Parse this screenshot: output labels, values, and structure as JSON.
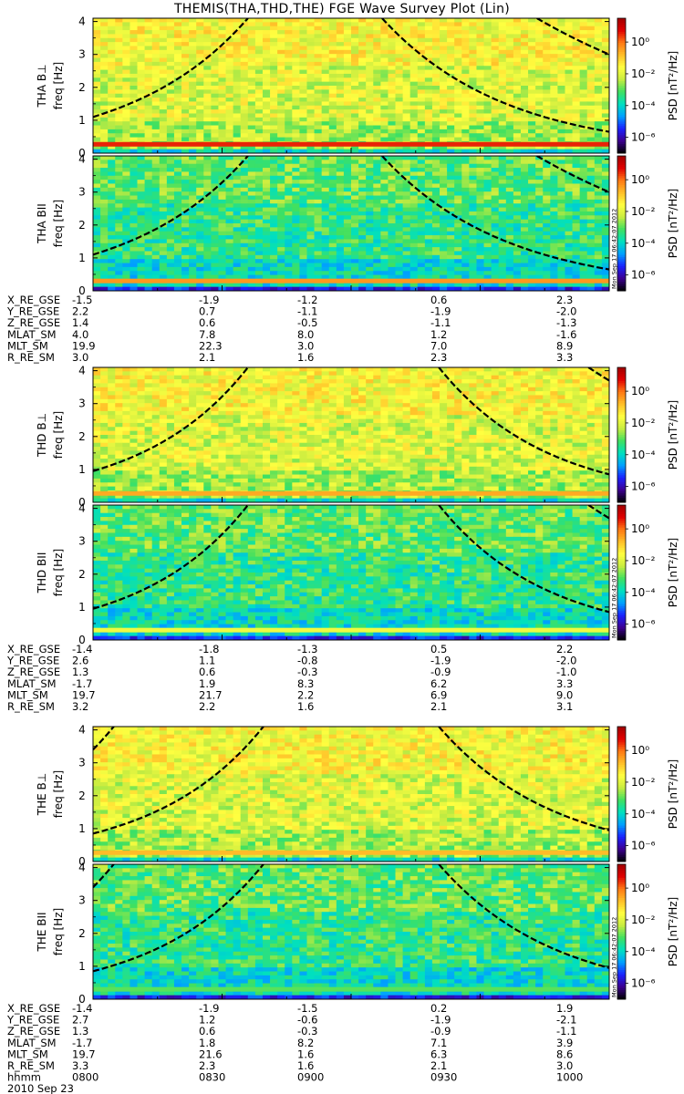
{
  "figure": {
    "title": "THEMIS(THA,THD,THE) FGE Wave Survey Plot (Lin)",
    "date_label": "2010 Sep 23"
  },
  "colorbar": {
    "label": "PSD [nT²/Hz]",
    "ticks": [
      "10⁰",
      "10⁻²",
      "10⁻⁴",
      "10⁻⁶"
    ],
    "tick_exponents": [
      0,
      -2,
      -4,
      -6
    ],
    "range_exponent": [
      -7,
      1.5
    ],
    "colormap": [
      "#000000",
      "#3c0090",
      "#1b22ff",
      "#00a0ff",
      "#00e0c0",
      "#40e060",
      "#c8ec40",
      "#ffff40",
      "#ffbe28",
      "#ff7814",
      "#e00000",
      "#a00000"
    ]
  },
  "stamp": "Mon Sep 17 06:42:07 2012",
  "time_axis": {
    "label_row": "hhmm",
    "ticks": [
      "0800",
      "0830",
      "0900",
      "0930",
      "1000"
    ]
  },
  "chart_data": [
    {
      "type": "heatmap",
      "probe": "THA",
      "panels": [
        {
          "ylabel": "THA B⊥",
          "unit_label": "freq [Hz]",
          "yticks": [
            0,
            1,
            2,
            3,
            4
          ],
          "ylim": [
            0,
            4.1
          ],
          "background_level": -2.0,
          "low_band_level": -4.0,
          "line_freq": 0.27,
          "line_level": 0.5
        },
        {
          "ylabel": "THA BII",
          "unit_label": "freq [Hz]",
          "yticks": [
            0,
            1,
            2,
            3,
            4
          ],
          "ylim": [
            0,
            4.1
          ],
          "background_level": -3.4,
          "low_band_level": -5.5,
          "line_freq": 0.3,
          "line_level": -0.4
        }
      ],
      "gyro_curves": [
        {
          "x_start": 0.0,
          "x_end": 0.3,
          "f_start": 1.1,
          "f_end": 4.1
        },
        {
          "x_start": 0.56,
          "x_end": 1.0,
          "f_start": 4.1,
          "f_end": 0.65
        },
        {
          "x_start": 0.86,
          "x_end": 1.0,
          "f_start": 4.1,
          "f_end": 3.0
        }
      ],
      "ephemeris": [
        {
          "name": "X_RE_GSE",
          "values": [
            "-1.5",
            "-1.9",
            "-1.2",
            "0.6",
            "2.3"
          ]
        },
        {
          "name": "Y_RE_GSE",
          "values": [
            "2.2",
            "0.7",
            "-1.1",
            "-1.9",
            "-2.0"
          ]
        },
        {
          "name": "Z_RE_GSE",
          "values": [
            "1.4",
            "0.6",
            "-0.5",
            "-1.1",
            "-1.3"
          ]
        },
        {
          "name": "MLAT_SM",
          "values": [
            "4.0",
            "7.8",
            "8.0",
            "1.2",
            "-1.6"
          ]
        },
        {
          "name": "MLT_SM",
          "values": [
            "19.9",
            "22.3",
            "3.0",
            "7.0",
            "8.9"
          ]
        },
        {
          "name": "R_RE_SM",
          "values": [
            "3.0",
            "2.1",
            "1.6",
            "2.3",
            "3.3"
          ]
        }
      ]
    },
    {
      "type": "heatmap",
      "probe": "THD",
      "panels": [
        {
          "ylabel": "THD B⊥",
          "unit_label": "freq [Hz]",
          "yticks": [
            0,
            1,
            2,
            3,
            4
          ],
          "ylim": [
            0,
            4.1
          ],
          "background_level": -2.0,
          "low_band_level": -4.0,
          "line_freq": 0.27,
          "line_level": -0.6
        },
        {
          "ylabel": "THD BII",
          "unit_label": "freq [Hz]",
          "yticks": [
            0,
            1,
            2,
            3,
            4
          ],
          "ylim": [
            0,
            4.1
          ],
          "background_level": -3.4,
          "low_band_level": -5.5,
          "line_freq": 0.3,
          "line_level": -1.8
        }
      ],
      "gyro_curves": [
        {
          "x_start": 0.0,
          "x_end": 0.3,
          "f_start": 0.95,
          "f_end": 4.1
        },
        {
          "x_start": 0.67,
          "x_end": 1.0,
          "f_start": 4.1,
          "f_end": 0.85
        },
        {
          "x_start": 0.96,
          "x_end": 1.0,
          "f_start": 4.1,
          "f_end": 3.7
        }
      ],
      "ephemeris": [
        {
          "name": "X_RE_GSE",
          "values": [
            "-1.4",
            "-1.8",
            "-1.3",
            "0.5",
            "2.2"
          ]
        },
        {
          "name": "Y_RE_GSE",
          "values": [
            "2.6",
            "1.1",
            "-0.8",
            "-1.9",
            "-2.0"
          ]
        },
        {
          "name": "Z_RE_GSE",
          "values": [
            "1.3",
            "0.6",
            "-0.3",
            "-0.9",
            "-1.0"
          ]
        },
        {
          "name": "MLAT_SM",
          "values": [
            "-1.7",
            "1.9",
            "8.3",
            "6.2",
            "3.3"
          ]
        },
        {
          "name": "MLT_SM",
          "values": [
            "19.7",
            "21.7",
            "2.2",
            "6.9",
            "9.0"
          ]
        },
        {
          "name": "R_RE_SM",
          "values": [
            "3.2",
            "2.2",
            "1.6",
            "2.1",
            "3.1"
          ]
        }
      ]
    },
    {
      "type": "heatmap",
      "probe": "THE",
      "panels": [
        {
          "ylabel": "THE B⊥",
          "unit_label": "freq [Hz]",
          "yticks": [
            0,
            1,
            2,
            3,
            4
          ],
          "ylim": [
            0,
            4.1
          ],
          "background_level": -2.0,
          "low_band_level": -4.0,
          "line_freq": 0.27,
          "line_level": -0.8
        },
        {
          "ylabel": "THE BII",
          "unit_label": "freq [Hz]",
          "yticks": [
            0,
            1,
            2,
            3,
            4
          ],
          "ylim": [
            0,
            4.1
          ],
          "background_level": -3.4,
          "low_band_level": -5.5,
          "line_freq": 0.3,
          "line_level": -3.0
        }
      ],
      "gyro_curves": [
        {
          "x_start": 0.0,
          "x_end": 0.33,
          "f_start": 0.85,
          "f_end": 4.1
        },
        {
          "x_start": 0.67,
          "x_end": 1.0,
          "f_start": 4.1,
          "f_end": 0.95
        },
        {
          "x_start": 0.0,
          "x_end": 0.04,
          "f_start": 3.4,
          "f_end": 4.1
        }
      ],
      "ephemeris": [
        {
          "name": "X_RE_GSE",
          "values": [
            "-1.4",
            "-1.9",
            "-1.5",
            "0.2",
            "1.9"
          ]
        },
        {
          "name": "Y_RE_GSE",
          "values": [
            "2.7",
            "1.2",
            "-0.6",
            "-1.9",
            "-2.1"
          ]
        },
        {
          "name": "Z_RE_GSE",
          "values": [
            "1.3",
            "0.6",
            "-0.3",
            "-0.9",
            "-1.1"
          ]
        },
        {
          "name": "MLAT_SM",
          "values": [
            "-1.7",
            "1.8",
            "8.2",
            "7.1",
            "3.9"
          ]
        },
        {
          "name": "MLT_SM",
          "values": [
            "19.7",
            "21.6",
            "1.6",
            "6.3",
            "8.6"
          ]
        },
        {
          "name": "R_RE_SM",
          "values": [
            "3.3",
            "2.3",
            "1.6",
            "2.1",
            "3.0"
          ]
        }
      ]
    }
  ]
}
